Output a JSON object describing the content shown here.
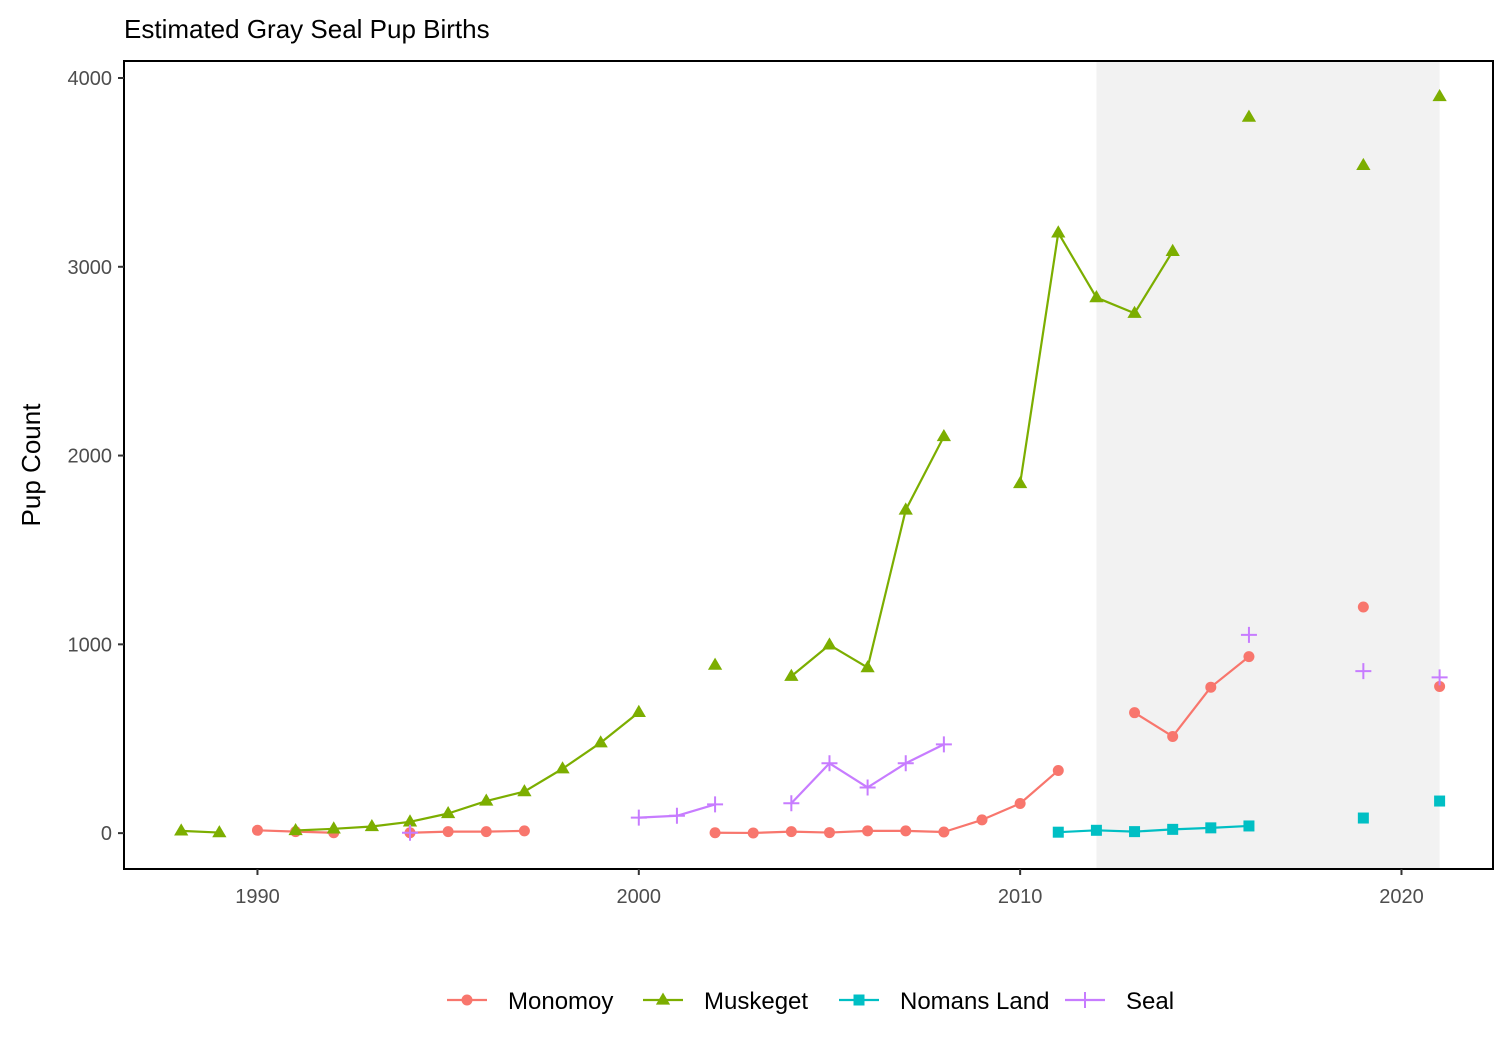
{
  "chart_data": {
    "type": "line",
    "title": "Estimated Gray Seal Pup Births",
    "xlabel": "",
    "ylabel": "Pup Count",
    "xlim": [
      1986.5,
      2022.4
    ],
    "ylim": [
      -190,
      4090
    ],
    "x_ticks": [
      1990,
      2000,
      2010,
      2020
    ],
    "y_ticks": [
      0,
      1000,
      2000,
      3000,
      4000
    ],
    "highlight_band": {
      "x": [
        2012,
        2021
      ],
      "color": "#f2f2f2"
    },
    "grid": false,
    "legend_position": "bottom",
    "series": [
      {
        "name": "Monomoy",
        "color": "#F8766D",
        "marker": "circle",
        "points": [
          [
            1990,
            15
          ],
          [
            1991,
            8
          ],
          [
            1992,
            2
          ],
          [
            null,
            null
          ],
          [
            1994,
            2
          ],
          [
            1995,
            8
          ],
          [
            1996,
            8
          ],
          [
            1997,
            12
          ],
          [
            null,
            null
          ],
          [
            2002,
            2
          ],
          [
            2003,
            1
          ],
          [
            2004,
            8
          ],
          [
            2005,
            3
          ],
          [
            2006,
            12
          ],
          [
            2007,
            12
          ],
          [
            2008,
            6
          ],
          [
            2009,
            70
          ],
          [
            2010,
            157
          ],
          [
            2011,
            332
          ],
          [
            null,
            null
          ],
          [
            2013,
            638
          ],
          [
            2014,
            512
          ],
          [
            2015,
            773
          ],
          [
            2016,
            935
          ],
          [
            null,
            null
          ],
          [
            2019,
            1198
          ],
          [
            null,
            null
          ],
          [
            2021,
            777
          ]
        ]
      },
      {
        "name": "Muskeget",
        "color": "#7CAE00",
        "marker": "triangle",
        "points": [
          [
            1988,
            12
          ],
          [
            1989,
            3
          ],
          [
            null,
            null
          ],
          [
            1991,
            14
          ],
          [
            1992,
            23
          ],
          [
            1993,
            35
          ],
          [
            1994,
            60
          ],
          [
            1995,
            104
          ],
          [
            1996,
            170
          ],
          [
            1997,
            220
          ],
          [
            1998,
            341
          ],
          [
            1999,
            479
          ],
          [
            2000,
            640
          ],
          [
            null,
            null
          ],
          [
            2002,
            890
          ],
          [
            null,
            null
          ],
          [
            2004,
            831
          ],
          [
            2005,
            997
          ],
          [
            2006,
            877
          ],
          [
            2007,
            1712
          ],
          [
            2008,
            2101
          ],
          [
            null,
            null
          ],
          [
            2010,
            1852
          ],
          [
            2011,
            3180
          ],
          [
            2012,
            2837
          ],
          [
            2013,
            2754
          ],
          [
            2014,
            3082
          ],
          [
            null,
            null
          ],
          [
            2016,
            3793
          ],
          [
            null,
            null
          ],
          [
            2019,
            3537
          ],
          [
            null,
            null
          ],
          [
            2021,
            3902
          ]
        ]
      },
      {
        "name": "Nomans Land",
        "color": "#00BFC4",
        "marker": "square",
        "points": [
          [
            2011,
            5
          ],
          [
            2012,
            15
          ],
          [
            2013,
            8
          ],
          [
            2014,
            20
          ],
          [
            2015,
            28
          ],
          [
            2016,
            38
          ],
          [
            null,
            null
          ],
          [
            2019,
            80
          ],
          [
            null,
            null
          ],
          [
            2021,
            170
          ]
        ]
      },
      {
        "name": "Seal",
        "color": "#C77CFF",
        "marker": "plus",
        "points": [
          [
            1994,
            2
          ],
          [
            null,
            null
          ],
          [
            2000,
            82
          ],
          [
            2001,
            92
          ],
          [
            2002,
            152
          ],
          [
            null,
            null
          ],
          [
            2004,
            158
          ],
          [
            2005,
            370
          ],
          [
            2006,
            242
          ],
          [
            2007,
            370
          ],
          [
            2008,
            470
          ],
          [
            null,
            null
          ],
          [
            2016,
            1050
          ],
          [
            null,
            null
          ],
          [
            2019,
            858
          ],
          [
            null,
            null
          ],
          [
            2021,
            825
          ]
        ]
      }
    ]
  }
}
